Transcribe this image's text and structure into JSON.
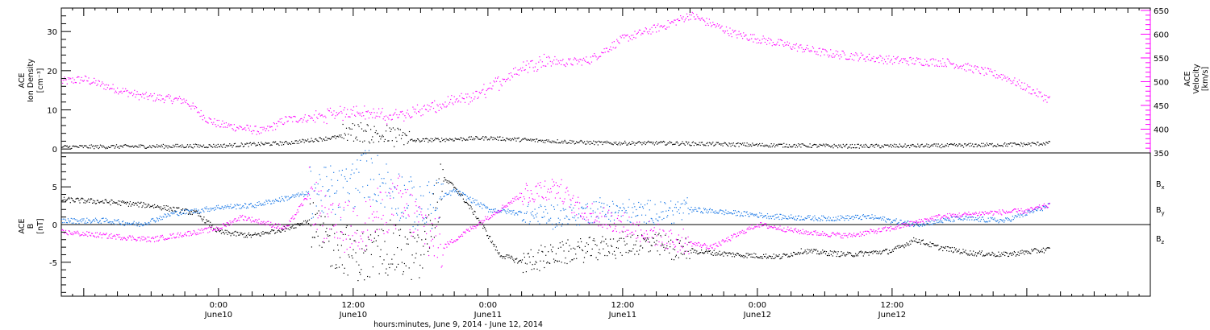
{
  "chart_data": [
    {
      "id": "top-panel",
      "type": "scatter",
      "x_range_hours": [
        -14,
        83
      ],
      "ylabel_left": [
        "ACE",
        "Ion Density",
        "[cm⁻³]"
      ],
      "ylabel_right": [
        "ACE",
        "Velocity",
        "[km/s]"
      ],
      "ylim_left": [
        -1,
        36
      ],
      "ylim_right": [
        350,
        655
      ],
      "left_ticks": [
        0,
        10,
        20,
        30
      ],
      "right_ticks": [
        350,
        400,
        450,
        500,
        550,
        600,
        650
      ],
      "colors": {
        "density": "#000000",
        "velocity": "#ff00ff"
      },
      "density_keypoints": {
        "x": [
          -14,
          0,
          6,
          12,
          16,
          24,
          28,
          34,
          40,
          48,
          56,
          64,
          72,
          74
        ],
        "y": [
          0.5,
          0.8,
          1.5,
          3.5,
          2.0,
          2.8,
          2.2,
          1.5,
          1.5,
          1.0,
          0.7,
          0.8,
          1.2,
          1.5
        ]
      },
      "velocity_keypoints": {
        "x": [
          -14,
          -12,
          -10,
          -7,
          -3,
          -1,
          0,
          4,
          6,
          9,
          12,
          15,
          17,
          20,
          23,
          25,
          27,
          29,
          31,
          33,
          36,
          40,
          42,
          46,
          50,
          54,
          60,
          65,
          70,
          74
        ],
        "y": [
          500,
          505,
          490,
          470,
          460,
          420,
          410,
          395,
          420,
          425,
          440,
          425,
          435,
          450,
          470,
          500,
          530,
          545,
          540,
          545,
          590,
          620,
          640,
          600,
          580,
          560,
          545,
          540,
          510,
          462
        ]
      }
    },
    {
      "id": "bottom-panel",
      "type": "scatter",
      "ylabel": [
        "ACE",
        "B",
        "[nT]"
      ],
      "ylim": [
        -9.5,
        9.5
      ],
      "ticks": [
        -5,
        0,
        5
      ],
      "xtick_labels": [
        {
          "hours": 0,
          "time": "0:00",
          "date": "June10"
        },
        {
          "hours": 12,
          "time": "12:00",
          "date": "June10"
        },
        {
          "hours": 24,
          "time": "0:00",
          "date": "June11"
        },
        {
          "hours": 36,
          "time": "12:00",
          "date": "June11"
        },
        {
          "hours": 48,
          "time": "0:00",
          "date": "June12"
        },
        {
          "hours": 60,
          "time": "12:00",
          "date": "June12"
        }
      ],
      "xlabel": "hours:minutes, June  9, 2014 - June 12, 2014",
      "legend": [
        {
          "name": "Bx",
          "sub": "x",
          "color": "#000000"
        },
        {
          "name": "By",
          "sub": "y",
          "color": "#1a78e6"
        },
        {
          "name": "Bz",
          "sub": "z",
          "color": "#ff00ff"
        }
      ],
      "bx_keypoints": {
        "x": [
          -14,
          -10,
          -6,
          -2,
          0,
          3,
          6,
          8,
          9,
          11,
          13,
          15,
          17,
          18,
          20,
          21,
          23,
          25,
          27,
          30,
          34,
          38,
          42,
          46,
          50,
          52,
          56,
          60,
          62,
          64,
          67,
          70,
          74
        ],
        "y": [
          3.3,
          3.0,
          2.5,
          1.5,
          -1.0,
          -1.5,
          -0.5,
          0.5,
          -2.0,
          -3.0,
          -4.5,
          -3.0,
          -4.0,
          -4.5,
          6.0,
          5.0,
          1.0,
          -4.0,
          -5.0,
          -4.0,
          -3.0,
          -2.5,
          -3.5,
          -4.0,
          -4.3,
          -3.5,
          -4.0,
          -3.5,
          -2.0,
          -3.0,
          -3.8,
          -4.0,
          -3.3
        ]
      },
      "by_keypoints": {
        "x": [
          -14,
          -10,
          -7,
          -4,
          -2,
          0,
          3,
          6,
          9,
          11,
          13,
          15,
          18,
          21,
          24,
          27,
          30,
          34,
          38,
          42,
          46,
          50,
          54,
          58,
          62,
          66,
          70,
          74
        ],
        "y": [
          0.5,
          0.5,
          0.0,
          1.5,
          1.8,
          2.3,
          2.5,
          3.5,
          4.5,
          4.0,
          7.0,
          5.0,
          2.0,
          4.5,
          2.0,
          1.5,
          1.0,
          2.0,
          1.5,
          2.0,
          1.5,
          1.0,
          0.8,
          1.0,
          0.0,
          0.8,
          0.5,
          2.5
        ]
      },
      "bz_keypoints": {
        "x": [
          -14,
          -10,
          -6,
          -2,
          0,
          2,
          6,
          8,
          10,
          13,
          16,
          20,
          24,
          27,
          30,
          32,
          36,
          40,
          44,
          48,
          52,
          56,
          60,
          64,
          68,
          72,
          74
        ],
        "y": [
          -1.0,
          -1.5,
          -2.0,
          -1.0,
          -0.5,
          1.0,
          -0.5,
          4.0,
          -0.5,
          0.0,
          3.0,
          -3.0,
          1.0,
          4.0,
          5.0,
          2.0,
          0.0,
          -2.0,
          -3.0,
          0.0,
          -1.0,
          -1.5,
          -0.5,
          1.0,
          1.5,
          1.8,
          2.6
        ]
      }
    }
  ]
}
